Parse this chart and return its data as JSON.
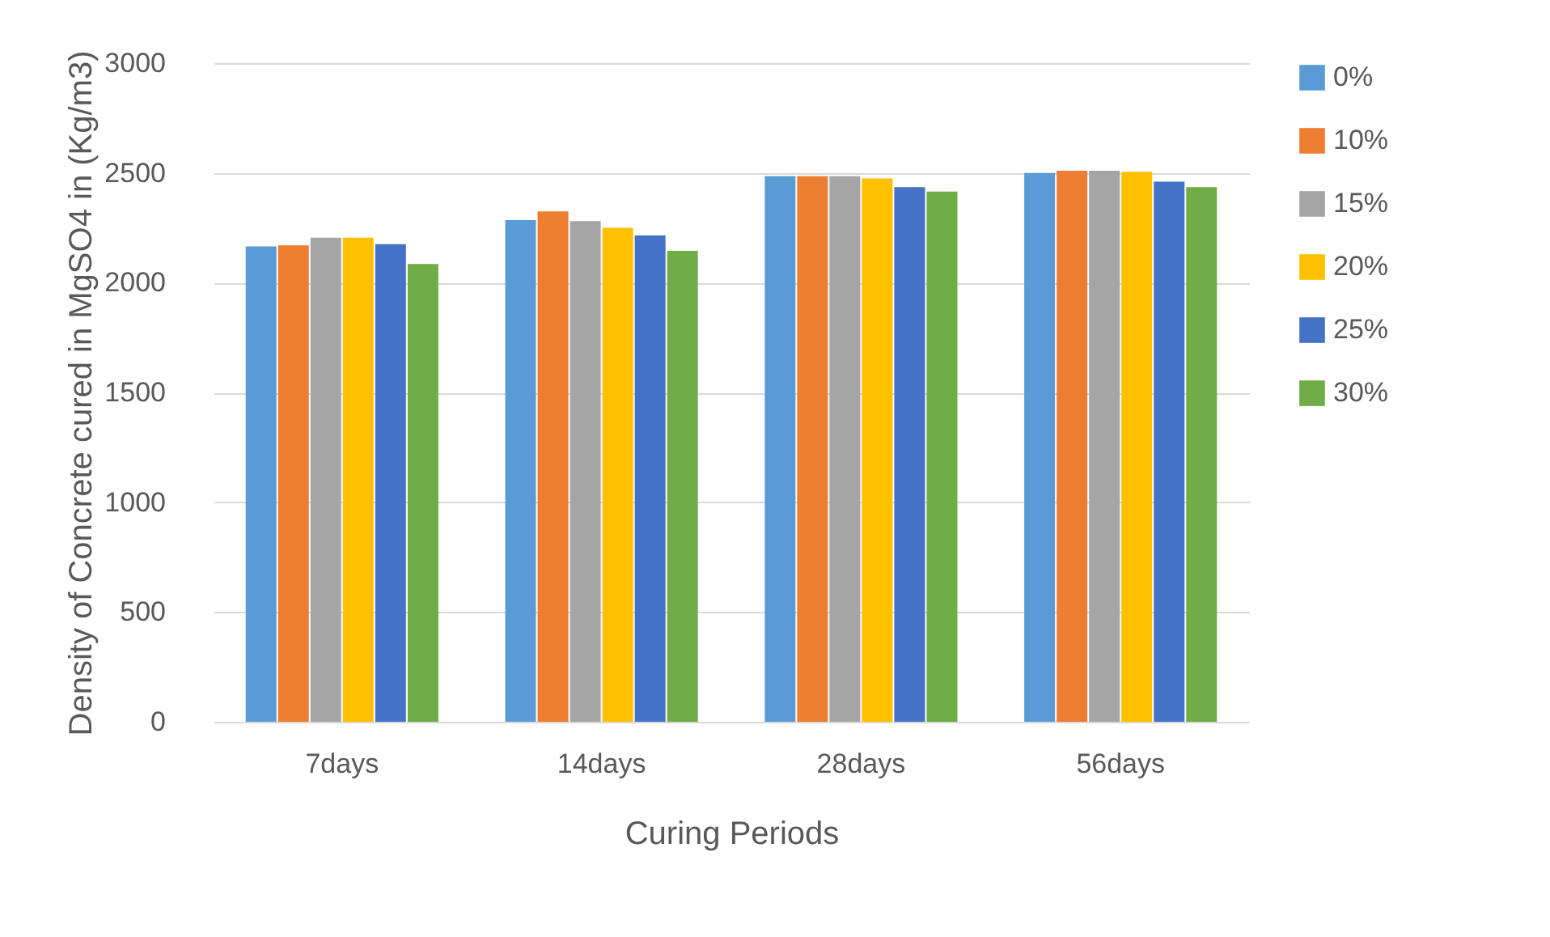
{
  "chart_data": {
    "type": "bar",
    "xlabel": "Curing Periods",
    "ylabel": "Density of Concrete cured in MgSO4 in (Kg/m3)",
    "categories": [
      "7days",
      "14days",
      "28days",
      "56days"
    ],
    "series": [
      {
        "name": "0%",
        "color": "#5b9bd5",
        "values": [
          2165,
          2285,
          2485,
          2500
        ]
      },
      {
        "name": "10%",
        "color": "#ed7d31",
        "values": [
          2170,
          2325,
          2485,
          2510
        ]
      },
      {
        "name": "15%",
        "color": "#a5a5a5",
        "values": [
          2205,
          2280,
          2485,
          2510
        ]
      },
      {
        "name": "20%",
        "color": "#ffc000",
        "values": [
          2205,
          2250,
          2475,
          2505
        ]
      },
      {
        "name": "25%",
        "color": "#4472c4",
        "values": [
          2175,
          2215,
          2435,
          2460
        ]
      },
      {
        "name": "30%",
        "color": "#70ad47",
        "values": [
          2085,
          2145,
          2415,
          2435
        ]
      }
    ],
    "ylim": [
      0,
      3000
    ],
    "yticks": [
      0,
      500,
      1000,
      1500,
      2000,
      2500,
      3000
    ],
    "grid": "y",
    "legend": "right"
  }
}
